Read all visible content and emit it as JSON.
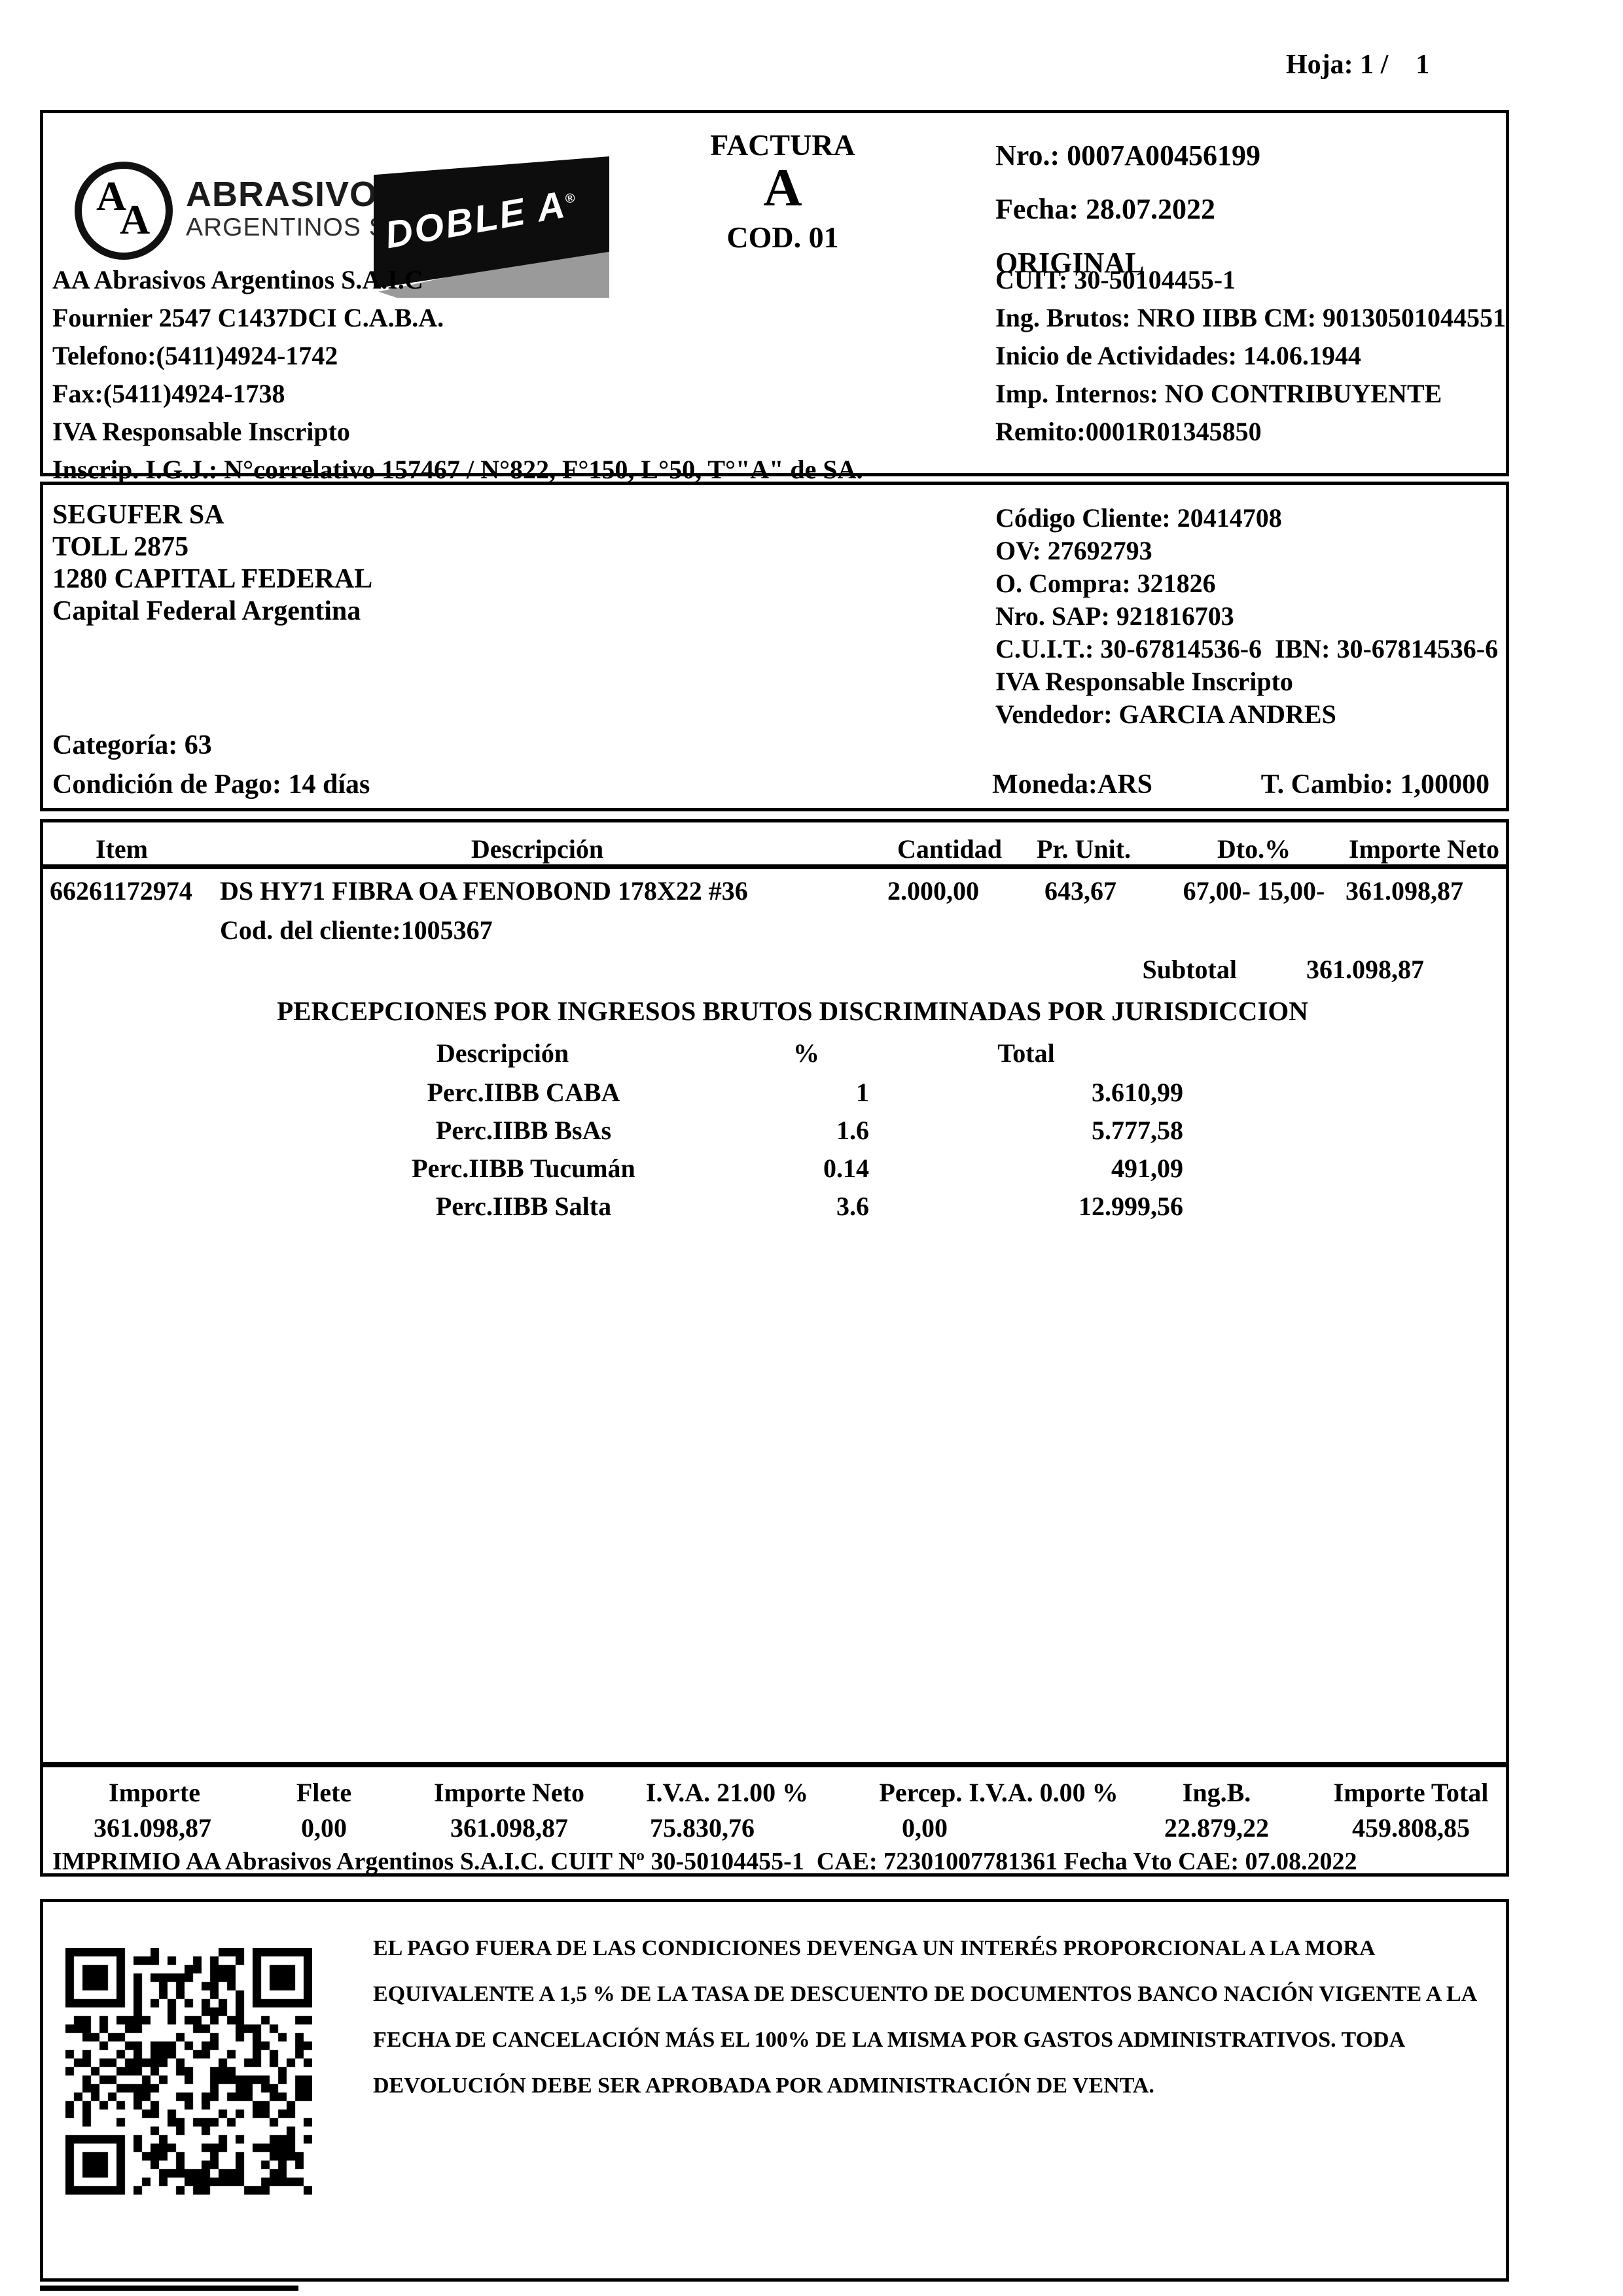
{
  "page": {
    "sheet": "Hoja: 1 /    1"
  },
  "invoice": {
    "type_title": "FACTURA",
    "type_letter": "A",
    "type_code": "COD. 01",
    "number": "Nro.: 0007A00456199",
    "date": "Fecha: 28.07.2022",
    "copy": "ORIGINAL"
  },
  "brand": {
    "circle_a1": "A",
    "circle_a2": "A",
    "name_top": "ABRASIVOS",
    "name_bottom": "ARGENTINOS S.A.I.C.",
    "badge": "DOBLE A",
    "badge_reg": "®"
  },
  "seller": {
    "lines_left": [
      "AA Abrasivos Argentinos S.A.I.C",
      "Fournier 2547 C1437DCI C.A.B.A.",
      "Telefono:(5411)4924-1742",
      "Fax:(5411)4924-1738",
      "IVA Responsable Inscripto",
      "Inscrip. I.G.J.: N°correlativo 157467 / N°822, F°150, L°50, T°\"A\" de SA."
    ],
    "lines_right": [
      "CUIT: 30-50104455-1",
      "Ing. Brutos: NRO IIBB CM: 90130501044551",
      "Inicio de Actividades: 14.06.1944",
      "Imp. Internos: NO CONTRIBUYENTE",
      "Remito:0001R01345850"
    ]
  },
  "customer": {
    "lines_left": [
      "SEGUFER SA",
      "TOLL 2875",
      "1280 CAPITAL FEDERAL",
      "Capital Federal Argentina"
    ],
    "lines_right": [
      "Código Cliente: 20414708",
      "OV: 27692793",
      "O. Compra: 321826",
      "Nro. SAP: 921816703",
      "C.U.I.T.: 30-67814536-6  IBN: 30-67814536-6",
      "IVA Responsable Inscripto",
      "Vendedor: GARCIA ANDRES"
    ],
    "category": "Categoría: 63",
    "payment_terms": "Condición de Pago: 14 días",
    "currency": "Moneda:ARS",
    "exchange_rate": "T. Cambio: 1,00000"
  },
  "items": {
    "headers": {
      "item": "Item",
      "description": "Descripción",
      "quantity": "Cantidad",
      "unit_price": "Pr. Unit.",
      "discount": "Dto.%",
      "net_amount": "Importe Neto"
    },
    "row": {
      "item": "66261172974",
      "description": "DS HY71 FIBRA OA FENOBOND 178X22 #36",
      "quantity": "2.000,00",
      "unit_price": "643,67",
      "discount": "67,00- 15,00-",
      "net_amount": "361.098,87"
    },
    "client_code": "Cod. del cliente:1005367",
    "subtotal_label": "Subtotal",
    "subtotal_value": "361.098,87"
  },
  "perceptions": {
    "title": "PERCEPCIONES POR INGRESOS BRUTOS DISCRIMINADAS POR JURISDICCION",
    "headers": {
      "description": "Descripción",
      "percent": "%",
      "total": "Total"
    },
    "rows": [
      {
        "description": "Perc.IIBB CABA",
        "percent": "1",
        "total": "3.610,99"
      },
      {
        "description": "Perc.IIBB BsAs",
        "percent": "1.6",
        "total": "5.777,58"
      },
      {
        "description": "Perc.IIBB Tucumán",
        "percent": "0.14",
        "total": "491,09"
      },
      {
        "description": "Perc.IIBB Salta",
        "percent": "3.6",
        "total": "12.999,56"
      }
    ]
  },
  "totals": {
    "headers": [
      "Importe",
      "Flete",
      "Importe Neto",
      "I.V.A. 21.00 %",
      "Percep. I.V.A. 0.00 %",
      "Ing.B.",
      "Importe Total"
    ],
    "values": [
      "361.098,87",
      "0,00",
      "361.098,87",
      "75.830,76",
      "0,00",
      "22.879,22",
      "459.808,85"
    ]
  },
  "footer": {
    "printed": "IMPRIMIO AA Abrasivos Argentinos S.A.I.C. CUIT Nº 30-50104455-1  CAE: 72301007781361 Fecha Vto CAE: 07.08.2022",
    "legal_lines": [
      "EL PAGO FUERA DE LAS CONDICIONES DEVENGA UN INTERÉS PROPORCIONAL A LA MORA",
      "EQUIVALENTE A 1,5 % DE LA TASA DE DESCUENTO DE DOCUMENTOS BANCO NACIÓN VIGENTE A LA",
      "FECHA DE CANCELACIÓN MÁS EL 100% DE LA MISMA POR GASTOS ADMINISTRATIVOS. TODA",
      "DEVOLUCIÓN DEBE SER APROBADA POR ADMINISTRACIÓN DE VENTA."
    ]
  }
}
